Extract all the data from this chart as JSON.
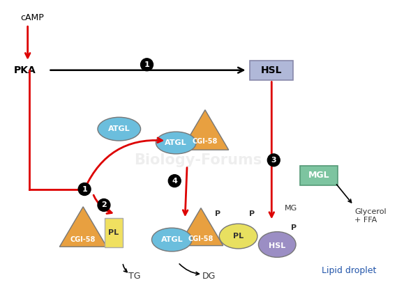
{
  "bg_color": "#ffffff",
  "colors": {
    "orange": "#E8A040",
    "blue_ellipse": "#6BBEDD",
    "yellow_rect": "#F0E060",
    "yellow_ellipse": "#E8E060",
    "purple_ellipse": "#9B8EC4",
    "green_box": "#7DC4A0",
    "lavender_box": "#B0B8D8",
    "red_arrow": "#DD0000",
    "black": "#000000",
    "dark_text": "#333333",
    "blue_text": "#2255AA"
  },
  "labels": {
    "cAMP": "cAMP",
    "PKA": "PKA",
    "HSL": "HSL",
    "ATGL": "ATGL",
    "CGI58": "CGI-58",
    "MGL": "MGL",
    "PL": "PL",
    "MG": "MG",
    "TG": "TG",
    "DG": "DG",
    "glycerol": "Glycerol\n+ FFA",
    "lipid_droplet": "Lipid droplet",
    "P": "P"
  }
}
